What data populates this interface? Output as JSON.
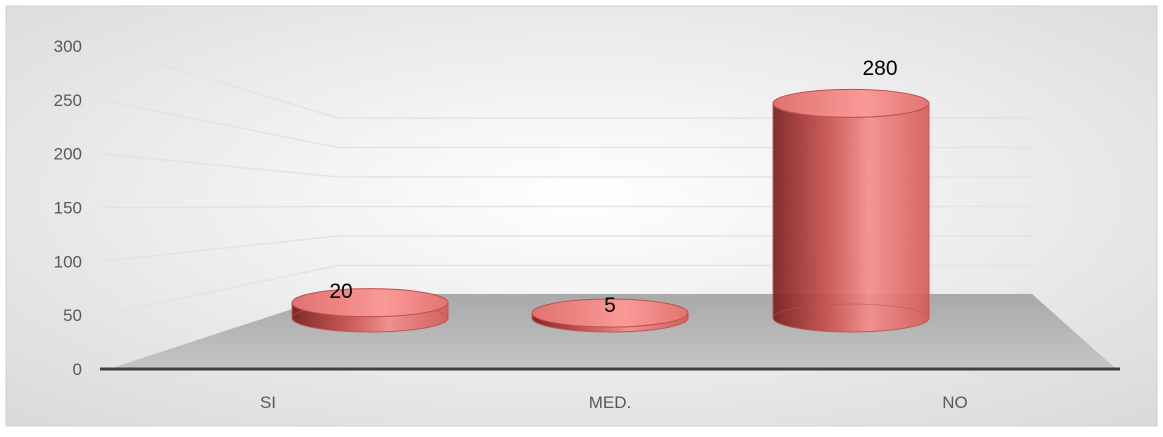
{
  "chart_data": {
    "type": "bar",
    "title": "",
    "xlabel": "",
    "ylabel": "",
    "categories": [
      "SI",
      "MED.",
      "NO"
    ],
    "values": [
      20,
      5,
      280
    ],
    "data_labels": [
      "20",
      "5",
      "280"
    ],
    "ylim": [
      0,
      300
    ],
    "y_ticks": [
      "0",
      "50",
      "100",
      "150",
      "200",
      "250",
      "300"
    ],
    "grid": true,
    "legend": "none",
    "style": "3d-cylinder",
    "colors": {
      "bar": "#e46a67",
      "bar_edge": "#c0504d",
      "floor": "#b5b5b5",
      "gridline": "#e3e3e3"
    }
  }
}
